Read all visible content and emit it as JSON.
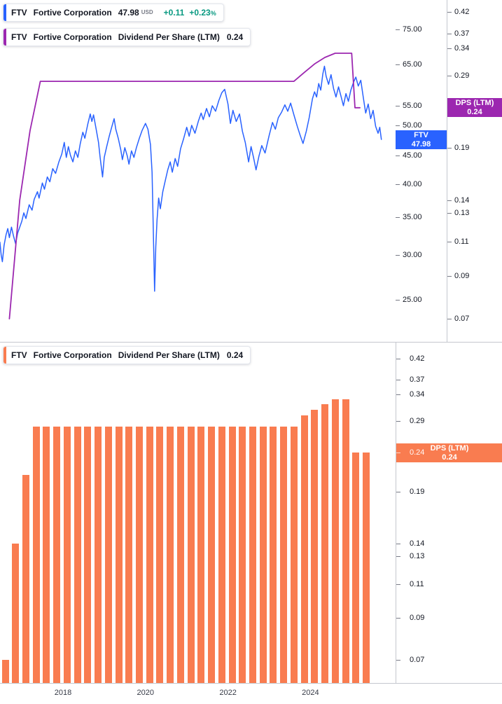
{
  "colors": {
    "price_line": "#2962FF",
    "dps_line": "#9C27B0",
    "dps_bars": "#F97C50",
    "up_green": "#089981",
    "axis_text": "#131722",
    "muted_text": "#787B86",
    "separator": "#C4C7CE",
    "background": "#FFFFFF"
  },
  "ui": {
    "legend_price": {
      "symbol": "FTV",
      "name": "Fortive Corporation",
      "price": "47.98",
      "currency": "USD",
      "change": "+0.11",
      "change_pct": "+0.23",
      "pct_sign": "%"
    },
    "legend_dps_top": {
      "symbol": "FTV",
      "name": "Fortive Corporation",
      "metric": "Dividend Per Share (LTM)",
      "value": "0.24"
    },
    "legend_dps_bottom": {
      "symbol": "FTV",
      "name": "Fortive Corporation",
      "metric": "Dividend Per Share (LTM)",
      "value": "0.24"
    },
    "price_badge": {
      "line1": "FTV",
      "line2": "47.98"
    },
    "dps_badge_top": {
      "line1": "DPS (LTM)",
      "line2": "0.24"
    },
    "dps_badge_bottom": {
      "line1": "DPS (LTM)",
      "line2": "0.24"
    }
  },
  "chart_data": [
    {
      "type": "line",
      "title": "FTV Fortive Corporation price (USD) with Dividend Per Share (LTM) overlay",
      "y_scale": "log",
      "x_range": [
        2016.45,
        2025.9
      ],
      "x_ticks": [
        "2018",
        "2020",
        "2022",
        "2024"
      ],
      "price_axis_ticks": [
        "75.00",
        "65.00",
        "55.00",
        "50.00",
        "45.00",
        "40.00",
        "35.00",
        "30.00",
        "25.00"
      ],
      "dps_axis_ticks": [
        "0.42",
        "0.37",
        "0.34",
        "0.29",
        "0.24",
        "0.19",
        "0.14",
        "0.13",
        "0.11",
        "0.09",
        "0.07"
      ],
      "series": [
        {
          "name": "FTV Fortive Corporation price (USD)",
          "axis": "price",
          "last": 47.98,
          "points": [
            [
              2016.47,
              31.6
            ],
            [
              2016.5,
              30.0
            ],
            [
              2016.53,
              29.2
            ],
            [
              2016.57,
              31.2
            ],
            [
              2016.62,
              32.6
            ],
            [
              2016.66,
              33.4
            ],
            [
              2016.7,
              32.2
            ],
            [
              2016.75,
              33.6
            ],
            [
              2016.8,
              32.4
            ],
            [
              2016.85,
              31.4
            ],
            [
              2016.9,
              32.8
            ],
            [
              2016.95,
              33.6
            ],
            [
              2017.0,
              34.4
            ],
            [
              2017.05,
              35.6
            ],
            [
              2017.1,
              34.8
            ],
            [
              2017.18,
              36.8
            ],
            [
              2017.25,
              36.0
            ],
            [
              2017.3,
              37.6
            ],
            [
              2017.38,
              38.8
            ],
            [
              2017.42,
              37.8
            ],
            [
              2017.5,
              40.2
            ],
            [
              2017.55,
              39.2
            ],
            [
              2017.62,
              41.2
            ],
            [
              2017.68,
              40.4
            ],
            [
              2017.75,
              42.6
            ],
            [
              2017.82,
              41.8
            ],
            [
              2017.9,
              43.8
            ],
            [
              2017.97,
              45.2
            ],
            [
              2018.03,
              47.4
            ],
            [
              2018.08,
              44.6
            ],
            [
              2018.13,
              46.6
            ],
            [
              2018.18,
              45.0
            ],
            [
              2018.24,
              43.8
            ],
            [
              2018.3,
              45.8
            ],
            [
              2018.36,
              44.6
            ],
            [
              2018.42,
              47.2
            ],
            [
              2018.48,
              49.4
            ],
            [
              2018.53,
              48.2
            ],
            [
              2018.6,
              51.0
            ],
            [
              2018.66,
              53.2
            ],
            [
              2018.7,
              51.6
            ],
            [
              2018.74,
              53.0
            ],
            [
              2018.8,
              50.2
            ],
            [
              2018.86,
              47.4
            ],
            [
              2018.9,
              44.6
            ],
            [
              2018.96,
              41.2
            ],
            [
              2019.0,
              44.6
            ],
            [
              2019.06,
              46.6
            ],
            [
              2019.12,
              48.6
            ],
            [
              2019.18,
              50.4
            ],
            [
              2019.24,
              52.2
            ],
            [
              2019.28,
              50.0
            ],
            [
              2019.34,
              48.2
            ],
            [
              2019.4,
              46.0
            ],
            [
              2019.44,
              44.2
            ],
            [
              2019.5,
              46.4
            ],
            [
              2019.56,
              44.8
            ],
            [
              2019.6,
              43.4
            ],
            [
              2019.66,
              45.8
            ],
            [
              2019.72,
              44.6
            ],
            [
              2019.78,
              46.4
            ],
            [
              2019.85,
              48.2
            ],
            [
              2019.92,
              49.8
            ],
            [
              2020.0,
              51.2
            ],
            [
              2020.06,
              50.0
            ],
            [
              2020.12,
              47.0
            ],
            [
              2020.16,
              42.0
            ],
            [
              2020.19,
              33.0
            ],
            [
              2020.22,
              25.9
            ],
            [
              2020.25,
              31.0
            ],
            [
              2020.28,
              34.6
            ],
            [
              2020.32,
              37.8
            ],
            [
              2020.36,
              36.2
            ],
            [
              2020.42,
              38.8
            ],
            [
              2020.48,
              40.6
            ],
            [
              2020.54,
              42.4
            ],
            [
              2020.6,
              43.8
            ],
            [
              2020.65,
              42.0
            ],
            [
              2020.72,
              44.4
            ],
            [
              2020.78,
              43.0
            ],
            [
              2020.85,
              46.2
            ],
            [
              2020.92,
              48.0
            ],
            [
              2021.0,
              50.4
            ],
            [
              2021.06,
              48.6
            ],
            [
              2021.12,
              50.8
            ],
            [
              2021.2,
              49.2
            ],
            [
              2021.28,
              51.6
            ],
            [
              2021.35,
              53.4
            ],
            [
              2021.4,
              52.0
            ],
            [
              2021.48,
              54.4
            ],
            [
              2021.55,
              52.6
            ],
            [
              2021.62,
              55.0
            ],
            [
              2021.7,
              53.8
            ],
            [
              2021.78,
              56.2
            ],
            [
              2021.85,
              58.0
            ],
            [
              2021.92,
              58.8
            ],
            [
              2022.0,
              55.4
            ],
            [
              2022.06,
              51.2
            ],
            [
              2022.12,
              54.0
            ],
            [
              2022.2,
              51.6
            ],
            [
              2022.28,
              53.2
            ],
            [
              2022.35,
              49.6
            ],
            [
              2022.42,
              47.4
            ],
            [
              2022.5,
              43.8
            ],
            [
              2022.56,
              46.6
            ],
            [
              2022.62,
              44.6
            ],
            [
              2022.68,
              42.4
            ],
            [
              2022.75,
              44.8
            ],
            [
              2022.82,
              46.8
            ],
            [
              2022.9,
              45.4
            ],
            [
              2023.0,
              48.8
            ],
            [
              2023.08,
              51.4
            ],
            [
              2023.15,
              50.0
            ],
            [
              2023.22,
              52.4
            ],
            [
              2023.3,
              53.6
            ],
            [
              2023.38,
              55.2
            ],
            [
              2023.45,
              53.8
            ],
            [
              2023.52,
              55.6
            ],
            [
              2023.6,
              53.0
            ],
            [
              2023.68,
              50.6
            ],
            [
              2023.75,
              48.8
            ],
            [
              2023.82,
              47.2
            ],
            [
              2023.9,
              49.6
            ],
            [
              2023.97,
              52.4
            ],
            [
              2024.05,
              56.6
            ],
            [
              2024.1,
              58.2
            ],
            [
              2024.15,
              57.0
            ],
            [
              2024.2,
              60.2
            ],
            [
              2024.25,
              58.6
            ],
            [
              2024.3,
              62.6
            ],
            [
              2024.34,
              64.6
            ],
            [
              2024.38,
              62.0
            ],
            [
              2024.44,
              60.0
            ],
            [
              2024.5,
              62.4
            ],
            [
              2024.56,
              59.0
            ],
            [
              2024.62,
              57.0
            ],
            [
              2024.68,
              59.4
            ],
            [
              2024.74,
              57.2
            ],
            [
              2024.8,
              55.0
            ],
            [
              2024.86,
              57.8
            ],
            [
              2024.92,
              56.0
            ],
            [
              2024.98,
              58.6
            ],
            [
              2025.04,
              60.4
            ],
            [
              2025.1,
              61.8
            ],
            [
              2025.16,
              59.6
            ],
            [
              2025.22,
              61.0
            ],
            [
              2025.28,
              57.0
            ],
            [
              2025.34,
              53.4
            ],
            [
              2025.4,
              55.4
            ],
            [
              2025.46,
              52.2
            ],
            [
              2025.52,
              54.0
            ],
            [
              2025.58,
              50.6
            ],
            [
              2025.64,
              49.2
            ],
            [
              2025.68,
              50.4
            ],
            [
              2025.72,
              47.98
            ]
          ]
        },
        {
          "name": "FTV Dividend Per Share (LTM)",
          "axis": "dps",
          "last": 0.24,
          "points": [
            [
              2016.7,
              0.07
            ],
            [
              2016.95,
              0.14
            ],
            [
              2017.2,
              0.21
            ],
            [
              2017.45,
              0.28
            ],
            [
              2023.6,
              0.28
            ],
            [
              2023.85,
              0.295
            ],
            [
              2024.1,
              0.31
            ],
            [
              2024.35,
              0.322
            ],
            [
              2024.6,
              0.33
            ],
            [
              2025.0,
              0.33
            ],
            [
              2025.08,
              0.24
            ],
            [
              2025.2,
              0.24
            ]
          ]
        }
      ]
    },
    {
      "type": "bar",
      "title": "FTV Dividend Per Share (LTM)",
      "y_scale": "log",
      "x_ticks": [
        "2018",
        "2020",
        "2022",
        "2024"
      ],
      "axis_ticks": [
        "0.42",
        "0.37",
        "0.34",
        "0.29",
        "0.24",
        "0.19",
        "0.14",
        "0.13",
        "0.11",
        "0.09",
        "0.07"
      ],
      "x": [
        2016.6,
        2016.85,
        2017.1,
        2017.35,
        2017.6,
        2017.85,
        2018.1,
        2018.35,
        2018.6,
        2018.85,
        2019.1,
        2019.35,
        2019.6,
        2019.85,
        2020.1,
        2020.35,
        2020.6,
        2020.85,
        2021.1,
        2021.35,
        2021.6,
        2021.85,
        2022.1,
        2022.35,
        2022.6,
        2022.85,
        2023.1,
        2023.35,
        2023.6,
        2023.85,
        2024.1,
        2024.35,
        2024.6,
        2024.85,
        2025.1,
        2025.35
      ],
      "values": [
        0.07,
        0.14,
        0.21,
        0.28,
        0.28,
        0.28,
        0.28,
        0.28,
        0.28,
        0.28,
        0.28,
        0.28,
        0.28,
        0.28,
        0.28,
        0.28,
        0.28,
        0.28,
        0.28,
        0.28,
        0.28,
        0.28,
        0.28,
        0.28,
        0.28,
        0.28,
        0.28,
        0.28,
        0.28,
        0.3,
        0.31,
        0.32,
        0.33,
        0.33,
        0.24,
        0.24
      ]
    }
  ]
}
